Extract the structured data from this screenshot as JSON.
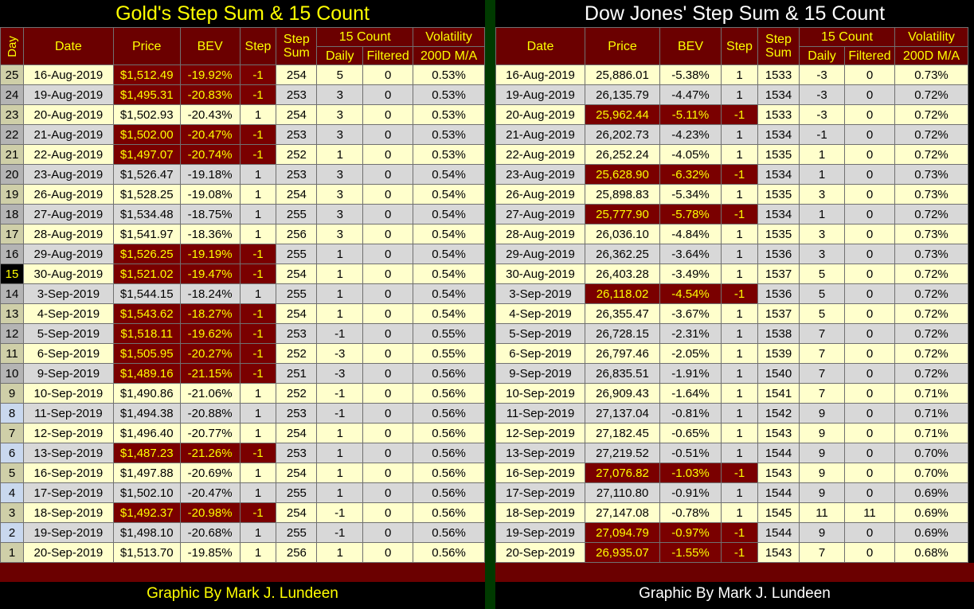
{
  "gold": {
    "title": "Gold's Step Sum & 15 Count",
    "headers": {
      "day": "Day",
      "date": "Date",
      "price": "Price",
      "bev": "BEV",
      "step": "Step",
      "step_sum": "Step Sum",
      "count_group": "15 Count",
      "daily": "Daily",
      "filtered": "Filtered",
      "volatility": "Volatility",
      "vol_ma": "200D M/A"
    },
    "rows": [
      {
        "day": "25",
        "date": "16-Aug-2019",
        "price": "$1,512.49",
        "bev": "-19.92%",
        "step": "-1",
        "step_sum": "254",
        "daily": "5",
        "filtered": "0",
        "vol": "0.53%",
        "neg": true
      },
      {
        "day": "24",
        "date": "19-Aug-2019",
        "price": "$1,495.31",
        "bev": "-20.83%",
        "step": "-1",
        "step_sum": "253",
        "daily": "3",
        "filtered": "0",
        "vol": "0.53%",
        "neg": true
      },
      {
        "day": "23",
        "date": "20-Aug-2019",
        "price": "$1,502.93",
        "bev": "-20.43%",
        "step": "1",
        "step_sum": "254",
        "daily": "3",
        "filtered": "0",
        "vol": "0.53%",
        "neg": false
      },
      {
        "day": "22",
        "date": "21-Aug-2019",
        "price": "$1,502.00",
        "bev": "-20.47%",
        "step": "-1",
        "step_sum": "253",
        "daily": "3",
        "filtered": "0",
        "vol": "0.53%",
        "neg": true
      },
      {
        "day": "21",
        "date": "22-Aug-2019",
        "price": "$1,497.07",
        "bev": "-20.74%",
        "step": "-1",
        "step_sum": "252",
        "daily": "1",
        "filtered": "0",
        "vol": "0.53%",
        "neg": true
      },
      {
        "day": "20",
        "date": "23-Aug-2019",
        "price": "$1,526.47",
        "bev": "-19.18%",
        "step": "1",
        "step_sum": "253",
        "daily": "3",
        "filtered": "0",
        "vol": "0.54%",
        "neg": false
      },
      {
        "day": "19",
        "date": "26-Aug-2019",
        "price": "$1,528.25",
        "bev": "-19.08%",
        "step": "1",
        "step_sum": "254",
        "daily": "3",
        "filtered": "0",
        "vol": "0.54%",
        "neg": false
      },
      {
        "day": "18",
        "date": "27-Aug-2019",
        "price": "$1,534.48",
        "bev": "-18.75%",
        "step": "1",
        "step_sum": "255",
        "daily": "3",
        "filtered": "0",
        "vol": "0.54%",
        "neg": false
      },
      {
        "day": "17",
        "date": "28-Aug-2019",
        "price": "$1,541.97",
        "bev": "-18.36%",
        "step": "1",
        "step_sum": "256",
        "daily": "3",
        "filtered": "0",
        "vol": "0.54%",
        "neg": false
      },
      {
        "day": "16",
        "date": "29-Aug-2019",
        "price": "$1,526.25",
        "bev": "-19.19%",
        "step": "-1",
        "step_sum": "255",
        "daily": "1",
        "filtered": "0",
        "vol": "0.54%",
        "neg": true
      },
      {
        "day": "15",
        "date": "30-Aug-2019",
        "price": "$1,521.02",
        "bev": "-19.47%",
        "step": "-1",
        "step_sum": "254",
        "daily": "1",
        "filtered": "0",
        "vol": "0.54%",
        "neg": true,
        "highlight": true
      },
      {
        "day": "14",
        "date": "3-Sep-2019",
        "price": "$1,544.15",
        "bev": "-18.24%",
        "step": "1",
        "step_sum": "255",
        "daily": "1",
        "filtered": "0",
        "vol": "0.54%",
        "neg": false
      },
      {
        "day": "13",
        "date": "4-Sep-2019",
        "price": "$1,543.62",
        "bev": "-18.27%",
        "step": "-1",
        "step_sum": "254",
        "daily": "1",
        "filtered": "0",
        "vol": "0.54%",
        "neg": true
      },
      {
        "day": "12",
        "date": "5-Sep-2019",
        "price": "$1,518.11",
        "bev": "-19.62%",
        "step": "-1",
        "step_sum": "253",
        "daily": "-1",
        "filtered": "0",
        "vol": "0.55%",
        "neg": true
      },
      {
        "day": "11",
        "date": "6-Sep-2019",
        "price": "$1,505.95",
        "bev": "-20.27%",
        "step": "-1",
        "step_sum": "252",
        "daily": "-3",
        "filtered": "0",
        "vol": "0.55%",
        "neg": true
      },
      {
        "day": "10",
        "date": "9-Sep-2019",
        "price": "$1,489.16",
        "bev": "-21.15%",
        "step": "-1",
        "step_sum": "251",
        "daily": "-3",
        "filtered": "0",
        "vol": "0.56%",
        "neg": true
      },
      {
        "day": "9",
        "date": "10-Sep-2019",
        "price": "$1,490.86",
        "bev": "-21.06%",
        "step": "1",
        "step_sum": "252",
        "daily": "-1",
        "filtered": "0",
        "vol": "0.56%",
        "neg": false
      },
      {
        "day": "8",
        "date": "11-Sep-2019",
        "price": "$1,494.38",
        "bev": "-20.88%",
        "step": "1",
        "step_sum": "253",
        "daily": "-1",
        "filtered": "0",
        "vol": "0.56%",
        "neg": false,
        "blue": true
      },
      {
        "day": "7",
        "date": "12-Sep-2019",
        "price": "$1,496.40",
        "bev": "-20.77%",
        "step": "1",
        "step_sum": "254",
        "daily": "1",
        "filtered": "0",
        "vol": "0.56%",
        "neg": false
      },
      {
        "day": "6",
        "date": "13-Sep-2019",
        "price": "$1,487.23",
        "bev": "-21.26%",
        "step": "-1",
        "step_sum": "253",
        "daily": "1",
        "filtered": "0",
        "vol": "0.56%",
        "neg": true,
        "blue": true
      },
      {
        "day": "5",
        "date": "16-Sep-2019",
        "price": "$1,497.88",
        "bev": "-20.69%",
        "step": "1",
        "step_sum": "254",
        "daily": "1",
        "filtered": "0",
        "vol": "0.56%",
        "neg": false
      },
      {
        "day": "4",
        "date": "17-Sep-2019",
        "price": "$1,502.10",
        "bev": "-20.47%",
        "step": "1",
        "step_sum": "255",
        "daily": "1",
        "filtered": "0",
        "vol": "0.56%",
        "neg": false,
        "blue": true
      },
      {
        "day": "3",
        "date": "18-Sep-2019",
        "price": "$1,492.37",
        "bev": "-20.98%",
        "step": "-1",
        "step_sum": "254",
        "daily": "-1",
        "filtered": "0",
        "vol": "0.56%",
        "neg": true
      },
      {
        "day": "2",
        "date": "19-Sep-2019",
        "price": "$1,498.10",
        "bev": "-20.68%",
        "step": "1",
        "step_sum": "255",
        "daily": "-1",
        "filtered": "0",
        "vol": "0.56%",
        "neg": false,
        "blue": true
      },
      {
        "day": "1",
        "date": "20-Sep-2019",
        "price": "$1,513.70",
        "bev": "-19.85%",
        "step": "1",
        "step_sum": "256",
        "daily": "1",
        "filtered": "0",
        "vol": "0.56%",
        "neg": false
      }
    ],
    "footer": "Graphic By Mark J. Lundeen"
  },
  "dow": {
    "title": "Dow Jones' Step Sum & 15 Count",
    "headers": {
      "date": "Date",
      "price": "Price",
      "bev": "BEV",
      "step": "Step",
      "step_sum": "Step Sum",
      "count_group": "15 Count",
      "daily": "Daily",
      "filtered": "Filtered",
      "volatility": "Volatility",
      "vol_ma": "200D M/A"
    },
    "rows": [
      {
        "date": "16-Aug-2019",
        "price": "25,886.01",
        "bev": "-5.38%",
        "step": "1",
        "step_sum": "1533",
        "daily": "-3",
        "filtered": "0",
        "vol": "0.73%",
        "neg": false
      },
      {
        "date": "19-Aug-2019",
        "price": "26,135.79",
        "bev": "-4.47%",
        "step": "1",
        "step_sum": "1534",
        "daily": "-3",
        "filtered": "0",
        "vol": "0.72%",
        "neg": false
      },
      {
        "date": "20-Aug-2019",
        "price": "25,962.44",
        "bev": "-5.11%",
        "step": "-1",
        "step_sum": "1533",
        "daily": "-3",
        "filtered": "0",
        "vol": "0.72%",
        "neg": true
      },
      {
        "date": "21-Aug-2019",
        "price": "26,202.73",
        "bev": "-4.23%",
        "step": "1",
        "step_sum": "1534",
        "daily": "-1",
        "filtered": "0",
        "vol": "0.72%",
        "neg": false
      },
      {
        "date": "22-Aug-2019",
        "price": "26,252.24",
        "bev": "-4.05%",
        "step": "1",
        "step_sum": "1535",
        "daily": "1",
        "filtered": "0",
        "vol": "0.72%",
        "neg": false
      },
      {
        "date": "23-Aug-2019",
        "price": "25,628.90",
        "bev": "-6.32%",
        "step": "-1",
        "step_sum": "1534",
        "daily": "1",
        "filtered": "0",
        "vol": "0.73%",
        "neg": true
      },
      {
        "date": "26-Aug-2019",
        "price": "25,898.83",
        "bev": "-5.34%",
        "step": "1",
        "step_sum": "1535",
        "daily": "3",
        "filtered": "0",
        "vol": "0.73%",
        "neg": false
      },
      {
        "date": "27-Aug-2019",
        "price": "25,777.90",
        "bev": "-5.78%",
        "step": "-1",
        "step_sum": "1534",
        "daily": "1",
        "filtered": "0",
        "vol": "0.72%",
        "neg": true
      },
      {
        "date": "28-Aug-2019",
        "price": "26,036.10",
        "bev": "-4.84%",
        "step": "1",
        "step_sum": "1535",
        "daily": "3",
        "filtered": "0",
        "vol": "0.73%",
        "neg": false
      },
      {
        "date": "29-Aug-2019",
        "price": "26,362.25",
        "bev": "-3.64%",
        "step": "1",
        "step_sum": "1536",
        "daily": "3",
        "filtered": "0",
        "vol": "0.73%",
        "neg": false
      },
      {
        "date": "30-Aug-2019",
        "price": "26,403.28",
        "bev": "-3.49%",
        "step": "1",
        "step_sum": "1537",
        "daily": "5",
        "filtered": "0",
        "vol": "0.72%",
        "neg": false
      },
      {
        "date": "3-Sep-2019",
        "price": "26,118.02",
        "bev": "-4.54%",
        "step": "-1",
        "step_sum": "1536",
        "daily": "5",
        "filtered": "0",
        "vol": "0.72%",
        "neg": true
      },
      {
        "date": "4-Sep-2019",
        "price": "26,355.47",
        "bev": "-3.67%",
        "step": "1",
        "step_sum": "1537",
        "daily": "5",
        "filtered": "0",
        "vol": "0.72%",
        "neg": false
      },
      {
        "date": "5-Sep-2019",
        "price": "26,728.15",
        "bev": "-2.31%",
        "step": "1",
        "step_sum": "1538",
        "daily": "7",
        "filtered": "0",
        "vol": "0.72%",
        "neg": false
      },
      {
        "date": "6-Sep-2019",
        "price": "26,797.46",
        "bev": "-2.05%",
        "step": "1",
        "step_sum": "1539",
        "daily": "7",
        "filtered": "0",
        "vol": "0.72%",
        "neg": false
      },
      {
        "date": "9-Sep-2019",
        "price": "26,835.51",
        "bev": "-1.91%",
        "step": "1",
        "step_sum": "1540",
        "daily": "7",
        "filtered": "0",
        "vol": "0.72%",
        "neg": false
      },
      {
        "date": "10-Sep-2019",
        "price": "26,909.43",
        "bev": "-1.64%",
        "step": "1",
        "step_sum": "1541",
        "daily": "7",
        "filtered": "0",
        "vol": "0.71%",
        "neg": false
      },
      {
        "date": "11-Sep-2019",
        "price": "27,137.04",
        "bev": "-0.81%",
        "step": "1",
        "step_sum": "1542",
        "daily": "9",
        "filtered": "0",
        "vol": "0.71%",
        "neg": false
      },
      {
        "date": "12-Sep-2019",
        "price": "27,182.45",
        "bev": "-0.65%",
        "step": "1",
        "step_sum": "1543",
        "daily": "9",
        "filtered": "0",
        "vol": "0.71%",
        "neg": false
      },
      {
        "date": "13-Sep-2019",
        "price": "27,219.52",
        "bev": "-0.51%",
        "step": "1",
        "step_sum": "1544",
        "daily": "9",
        "filtered": "0",
        "vol": "0.70%",
        "neg": false
      },
      {
        "date": "16-Sep-2019",
        "price": "27,076.82",
        "bev": "-1.03%",
        "step": "-1",
        "step_sum": "1543",
        "daily": "9",
        "filtered": "0",
        "vol": "0.70%",
        "neg": true
      },
      {
        "date": "17-Sep-2019",
        "price": "27,110.80",
        "bev": "-0.91%",
        "step": "1",
        "step_sum": "1544",
        "daily": "9",
        "filtered": "0",
        "vol": "0.69%",
        "neg": false
      },
      {
        "date": "18-Sep-2019",
        "price": "27,147.08",
        "bev": "-0.78%",
        "step": "1",
        "step_sum": "1545",
        "daily": "11",
        "filtered": "11",
        "vol": "0.69%",
        "neg": false
      },
      {
        "date": "19-Sep-2019",
        "price": "27,094.79",
        "bev": "-0.97%",
        "step": "-1",
        "step_sum": "1544",
        "daily": "9",
        "filtered": "0",
        "vol": "0.69%",
        "neg": true
      },
      {
        "date": "20-Sep-2019",
        "price": "26,935.07",
        "bev": "-1.55%",
        "step": "-1",
        "step_sum": "1543",
        "daily": "7",
        "filtered": "0",
        "vol": "0.68%",
        "neg": true
      }
    ],
    "footer": "Graphic By Mark J. Lundeen"
  },
  "colors": {
    "header_bg": "#6b0000",
    "header_text": "#ffff00",
    "negative_bg": "#7a0000",
    "row_light": "#ffffcc",
    "row_gray": "#d8d8d8",
    "divider": "#003a00"
  }
}
